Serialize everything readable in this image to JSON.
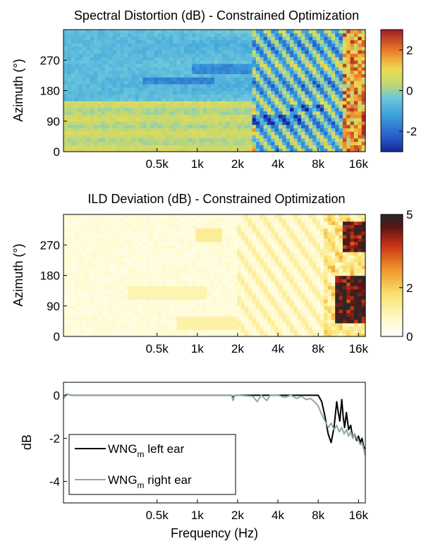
{
  "chart_data": [
    {
      "type": "heatmap",
      "title": "Spectral Distortion (dB) - Constrained Optimization",
      "xlabel": "",
      "ylabel": "Azimuth (°)",
      "x_scale": "log",
      "x_ticks": [
        "0.5k",
        "1k",
        "2k",
        "4k",
        "8k",
        "16k"
      ],
      "x_tick_values": [
        500,
        1000,
        2000,
        4000,
        8000,
        16000
      ],
      "xlim": [
        100,
        18000
      ],
      "y_ticks": [
        "0",
        "90",
        "180",
        "270"
      ],
      "y_tick_values": [
        0,
        90,
        180,
        270
      ],
      "ylim": [
        0,
        360
      ],
      "colorbar": {
        "ticks": [
          "-2",
          "0",
          "2"
        ],
        "tick_values": [
          -2,
          0,
          2
        ],
        "range": [
          -3,
          3
        ],
        "colormap": "jet"
      },
      "pattern": {
        "low_freq_value": -0.6,
        "blue_bands": [
          {
            "azimuth": 210,
            "from_hz": 400,
            "to_hz": 1300,
            "value": -1.6
          },
          {
            "azimuth": 245,
            "from_hz": 900,
            "to_hz": 2500,
            "value": -1.5
          },
          {
            "azimuth": 95,
            "from_hz": 2500,
            "to_hz": 6000,
            "value": -1.8
          },
          {
            "azimuth": 130,
            "from_hz": 5000,
            "to_hz": 9000,
            "value": -1.6
          }
        ],
        "yellow_region": {
          "azimuth_from": 0,
          "azimuth_to": 150,
          "from_hz": 100,
          "to_hz": 2800,
          "value": 0.7
        },
        "red_region": {
          "from_hz": 12000,
          "value": 2.8
        }
      }
    },
    {
      "type": "heatmap",
      "title": "ILD Deviation (dB) - Constrained Optimization",
      "xlabel": "",
      "ylabel": "Azimuth (°)",
      "x_scale": "log",
      "x_ticks": [
        "0.5k",
        "1k",
        "2k",
        "4k",
        "8k",
        "16k"
      ],
      "x_tick_values": [
        500,
        1000,
        2000,
        4000,
        8000,
        16000
      ],
      "xlim": [
        100,
        18000
      ],
      "y_ticks": [
        "0",
        "90",
        "180",
        "270"
      ],
      "y_tick_values": [
        0,
        90,
        180,
        270
      ],
      "ylim": [
        0,
        360
      ],
      "colorbar": {
        "ticks": [
          "0",
          "2",
          "5"
        ],
        "tick_values": [
          0,
          2,
          5
        ],
        "range": [
          0,
          5
        ],
        "colormap": "hot-reversed"
      },
      "pattern": {
        "low_freq_value": 0.3,
        "yellow_bands": [
          {
            "azimuth": 130,
            "from_hz": 300,
            "to_hz": 1200,
            "value": 1.0
          },
          {
            "azimuth": 40,
            "from_hz": 700,
            "to_hz": 2000,
            "value": 1.1
          },
          {
            "azimuth": 300,
            "from_hz": 1000,
            "to_hz": 1500,
            "value": 1.3
          }
        ],
        "dark_regions": [
          {
            "azimuth_from": 40,
            "azimuth_to": 180,
            "from_hz": 11000,
            "value": 4.8
          },
          {
            "azimuth_from": 250,
            "azimuth_to": 340,
            "from_hz": 12500,
            "value": 4.6
          }
        ]
      }
    },
    {
      "type": "line",
      "title": "",
      "xlabel": "Frequency (Hz)",
      "ylabel": "dB",
      "x_scale": "log",
      "x_ticks": [
        "0.5k",
        "1k",
        "2k",
        "4k",
        "8k",
        "16k"
      ],
      "x_tick_values": [
        500,
        1000,
        2000,
        4000,
        8000,
        16000
      ],
      "xlim": [
        100,
        18000
      ],
      "y_ticks": [
        "0",
        "-2",
        "-4"
      ],
      "y_tick_values": [
        0,
        -2,
        -4
      ],
      "ylim": [
        -5,
        0.6
      ],
      "legend": {
        "placement": "bottom-left"
      },
      "series": [
        {
          "name": "WNG",
          "subscript": "m",
          "suffix": " left ear",
          "color": "#000000",
          "x": [
            100,
            105,
            115,
            200,
            500,
            1000,
            1800,
            1850,
            1900,
            2000,
            4000,
            5000,
            6000,
            7000,
            8000,
            8500,
            9000,
            9500,
            10000,
            10500,
            11000,
            11300,
            11600,
            12000,
            12300,
            12600,
            13000,
            13500,
            14000,
            14500,
            15000,
            15500,
            16000,
            16500,
            17000,
            17500,
            18000
          ],
          "y": [
            -0.15,
            0.05,
            0.0,
            0.0,
            0.0,
            0.0,
            0.0,
            -0.1,
            0.0,
            0.0,
            0.0,
            0.0,
            0.0,
            0.0,
            0.0,
            -0.3,
            -1.0,
            -1.8,
            -2.2,
            -1.5,
            -0.3,
            -0.8,
            -1.2,
            -0.2,
            -1.0,
            -1.5,
            -0.8,
            -1.6,
            -1.4,
            -2.0,
            -1.8,
            -2.1,
            -1.9,
            -2.2,
            -2.0,
            -2.4,
            -2.5
          ]
        },
        {
          "name": "WNG",
          "subscript": "m",
          "suffix": " right ear",
          "color": "#8fa9a5",
          "x": [
            100,
            105,
            115,
            200,
            500,
            1000,
            1800,
            1850,
            1900,
            2000,
            2600,
            2800,
            3000,
            3300,
            3500,
            4000,
            4500,
            5000,
            5500,
            6000,
            6500,
            7000,
            7500,
            8000,
            8500,
            9000,
            9500,
            10000,
            10500,
            11000,
            11500,
            12000,
            12500,
            13000,
            13500,
            14000,
            14500,
            15000,
            15500,
            16000,
            16500,
            17000,
            17500,
            18000
          ],
          "y": [
            -0.15,
            0.05,
            0.0,
            0.0,
            0.0,
            0.0,
            0.0,
            -0.25,
            0.0,
            0.0,
            -0.05,
            -0.3,
            0.0,
            -0.25,
            0.0,
            0.0,
            -0.1,
            0.0,
            -0.15,
            -0.05,
            -0.2,
            -0.15,
            -0.3,
            -0.5,
            -0.9,
            -1.2,
            -1.5,
            -1.3,
            -1.6,
            -1.4,
            -1.7,
            -1.5,
            -1.8,
            -1.6,
            -1.9,
            -1.7,
            -2.0,
            -1.8,
            -2.0,
            -2.1,
            -2.3,
            -2.2,
            -2.5,
            -2.8
          ]
        }
      ]
    }
  ]
}
